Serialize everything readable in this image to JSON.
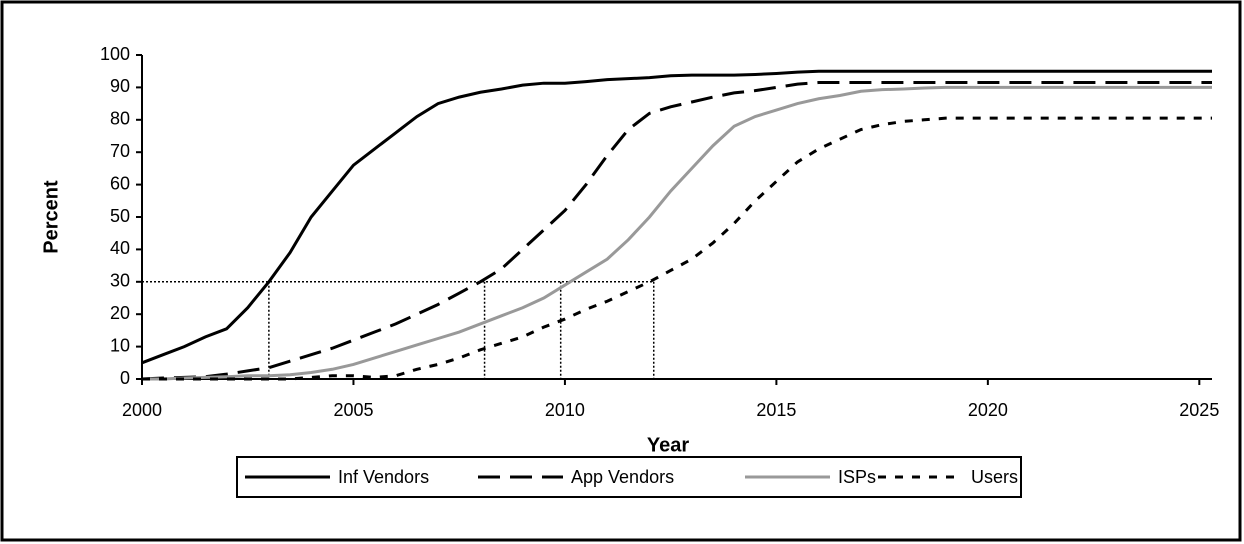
{
  "chart_data": {
    "type": "line",
    "xlabel": "Year",
    "ylabel": "Percent",
    "x": [
      2000,
      2000.5,
      2001,
      2001.5,
      2002,
      2002.5,
      2003,
      2003.5,
      2004,
      2004.5,
      2005,
      2005.5,
      2006,
      2006.5,
      2007,
      2007.5,
      2008,
      2008.5,
      2009,
      2009.5,
      2010,
      2010.5,
      2011,
      2011.5,
      2012,
      2012.5,
      2013,
      2013.5,
      2014,
      2014.5,
      2015,
      2015.5,
      2016,
      2016.5,
      2017,
      2017.5,
      2018,
      2018.5,
      2019,
      2019.5,
      2020,
      2020.5,
      2021,
      2021.5,
      2022,
      2022.5,
      2023,
      2023.5,
      2024,
      2024.5,
      2025,
      2025.3
    ],
    "series": [
      {
        "name": "Inf Vendors",
        "color": "#000000",
        "dash": "solid",
        "width": 3,
        "values": [
          5,
          7.5,
          10,
          13,
          15.5,
          22,
          30,
          39,
          50,
          58,
          66,
          71,
          76,
          81,
          85,
          87,
          88.5,
          89.5,
          90.7,
          91.3,
          91.3,
          91.8,
          92.4,
          92.7,
          93,
          93.6,
          93.8,
          93.8,
          93.8,
          94,
          94.3,
          94.7,
          95,
          95,
          95,
          95,
          95,
          95,
          95,
          95,
          95,
          95,
          95,
          95,
          95,
          95,
          95,
          95,
          95,
          95,
          95,
          95
        ]
      },
      {
        "name": "App Vendors",
        "color": "#000000",
        "dash": "long",
        "width": 3,
        "values": [
          0,
          0.3,
          0.5,
          0.7,
          1.5,
          2.5,
          3.5,
          5.5,
          7.5,
          9.5,
          12,
          14.5,
          17,
          20,
          23,
          26.5,
          30,
          34,
          40,
          46,
          52,
          60,
          69,
          77,
          82,
          84,
          85.5,
          87,
          88.3,
          89,
          90,
          91,
          91.5,
          91.5,
          91.5,
          91.5,
          91.5,
          91.5,
          91.5,
          91.5,
          91.5,
          91.5,
          91.5,
          91.5,
          91.5,
          91.5,
          91.5,
          91.5,
          91.5,
          91.5,
          91.5,
          91.5
        ]
      },
      {
        "name": "ISPs",
        "color": "#999999",
        "dash": "solid",
        "width": 3,
        "values": [
          0,
          0,
          0.3,
          0.5,
          0.7,
          1,
          1,
          1.3,
          2,
          3,
          4.5,
          6.5,
          8.5,
          10.5,
          12.5,
          14.5,
          17,
          19.5,
          22,
          25,
          29,
          33,
          37,
          43,
          50,
          58,
          65,
          72,
          78,
          81,
          83,
          85,
          86.5,
          87.5,
          88.8,
          89.3,
          89.5,
          89.8,
          90,
          90,
          90,
          90,
          90,
          90,
          90,
          90,
          90,
          90,
          90,
          90,
          90,
          90
        ]
      },
      {
        "name": "Users",
        "color": "#000000",
        "dash": "short",
        "width": 3,
        "values": [
          0,
          0,
          0,
          0,
          0,
          0,
          0,
          0,
          0.5,
          1,
          1,
          0.5,
          1,
          3,
          4.5,
          6.5,
          9,
          11,
          13,
          16,
          18.5,
          21.5,
          24,
          27,
          30,
          33.5,
          37,
          42,
          48,
          55,
          61,
          67,
          71,
          74,
          77,
          78.5,
          79.5,
          80,
          80.5,
          80.5,
          80.5,
          80.5,
          80.5,
          80.5,
          80.5,
          80.5,
          80.5,
          80.5,
          80.5,
          80.5,
          80.5,
          80.5
        ]
      }
    ],
    "crosshairs": {
      "y": 30,
      "x": [
        2003,
        2008.1,
        2009.9,
        2012.1
      ]
    },
    "xlim": [
      2000,
      2025.3
    ],
    "xticks": [
      2000,
      2005,
      2010,
      2015,
      2020,
      2025
    ],
    "ylim": [
      0,
      100
    ],
    "yticks": [
      0,
      10,
      20,
      30,
      40,
      50,
      60,
      70,
      80,
      90,
      100
    ],
    "grid": false,
    "legend": "bottom"
  }
}
